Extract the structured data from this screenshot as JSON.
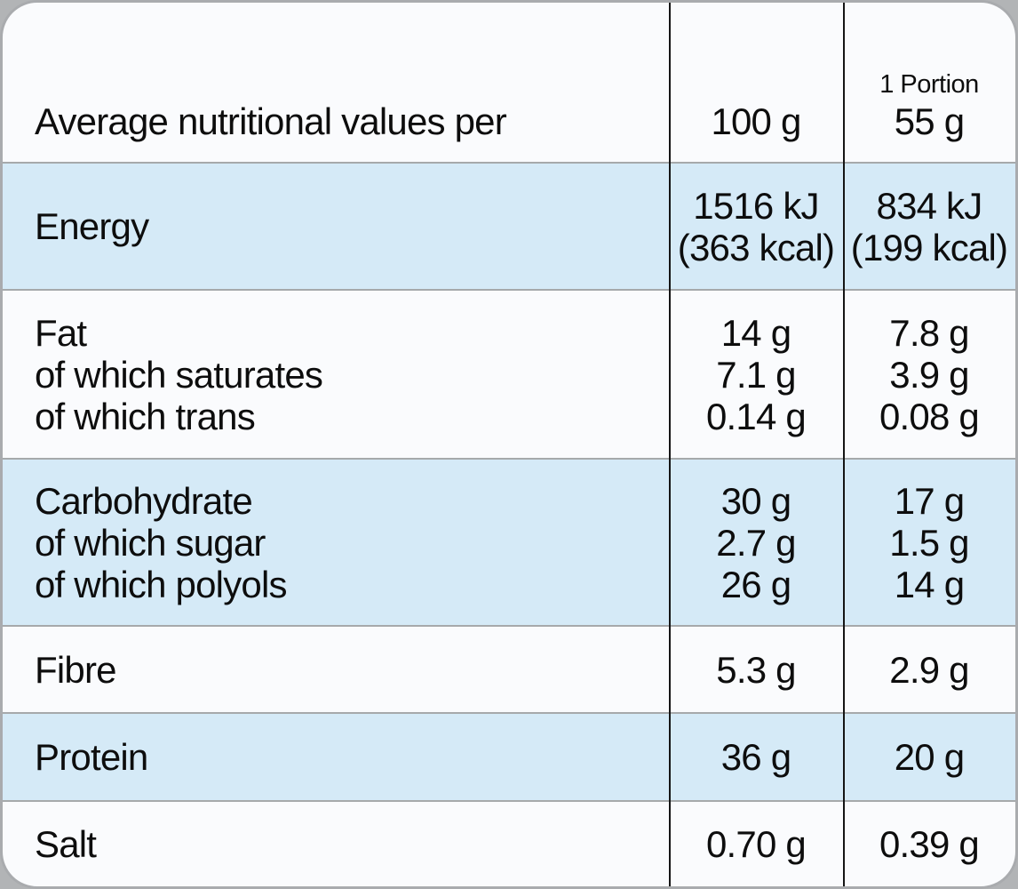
{
  "table": {
    "header": {
      "label": "Average nutritional values per",
      "per100_label": "100 g",
      "portion_label": "1 Portion",
      "portion_amount": "55 g"
    },
    "rows": [
      {
        "name": "energy",
        "labels": [
          "Energy"
        ],
        "per100": [
          "1516 kJ",
          "(363 kcal)"
        ],
        "portion": [
          "834 kJ",
          "(199 kcal)"
        ],
        "shaded": true
      },
      {
        "name": "fat",
        "labels": [
          "Fat",
          "of which saturates",
          "of which trans"
        ],
        "per100": [
          "14 g",
          "7.1 g",
          "0.14 g"
        ],
        "portion": [
          "7.8 g",
          "3.9 g",
          "0.08 g"
        ],
        "shaded": false
      },
      {
        "name": "carbohydrate",
        "labels": [
          "Carbohydrate",
          "of which sugar",
          "of which polyols"
        ],
        "per100": [
          "30 g",
          "2.7 g",
          "26 g"
        ],
        "portion": [
          "17 g",
          "1.5 g",
          "14 g"
        ],
        "shaded": true
      },
      {
        "name": "fibre",
        "labels": [
          "Fibre"
        ],
        "per100": [
          "5.3 g"
        ],
        "portion": [
          "2.9 g"
        ],
        "shaded": false
      },
      {
        "name": "protein",
        "labels": [
          "Protein"
        ],
        "per100": [
          "36 g"
        ],
        "portion": [
          "20 g"
        ],
        "shaded": true
      },
      {
        "name": "salt",
        "labels": [
          "Salt"
        ],
        "per100": [
          "0.70 g"
        ],
        "portion": [
          "0.39 g"
        ],
        "shaded": false
      }
    ],
    "colors": {
      "shaded_row": "#d5eaf7",
      "plain_row": "#fafbfd",
      "outer_background": "#b2b4b6",
      "row_separator": "#a6a9ab",
      "column_rule": "#151515",
      "text": "#0d0d0d"
    }
  }
}
